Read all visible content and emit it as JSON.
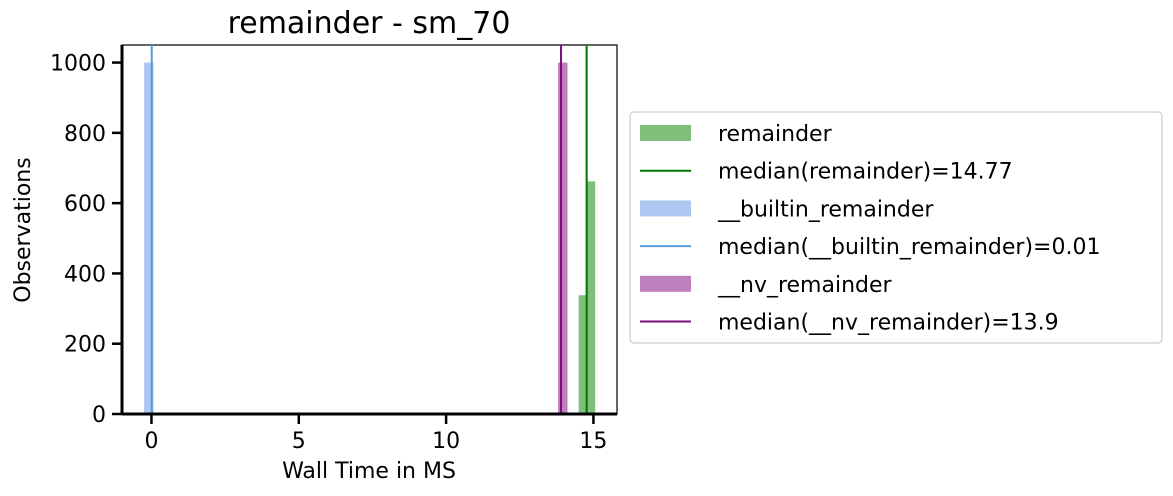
{
  "chart_data": {
    "type": "histogram",
    "title": "remainder - sm_70",
    "xlabel": "Wall Time in MS",
    "ylabel": "Observations",
    "xlim": [
      -1.0,
      15.8
    ],
    "ylim": [
      0,
      1050
    ],
    "xticks": [
      0,
      5,
      10,
      15
    ],
    "yticks": [
      0,
      200,
      400,
      600,
      800,
      1000
    ],
    "grid": false,
    "legend_position": "outside-right",
    "series": [
      {
        "name": "remainder",
        "kind": "bars",
        "color": "#7fbf7b",
        "bars": [
          {
            "x0": 14.5,
            "x1": 14.78,
            "count": 338
          },
          {
            "x0": 14.78,
            "x1": 15.06,
            "count": 662
          }
        ]
      },
      {
        "name": "__builtin_remainder",
        "kind": "bars",
        "color": "#aec7f1",
        "bars": [
          {
            "x0": -0.25,
            "x1": 0.07,
            "count": 1000
          }
        ]
      },
      {
        "name": "__nv_remainder",
        "kind": "bars",
        "color": "#bf7fbf",
        "bars": [
          {
            "x0": 13.8,
            "x1": 14.12,
            "count": 1000
          }
        ]
      }
    ],
    "medians": [
      {
        "name": "median(remainder)=14.77",
        "x": 14.77,
        "color": "#007500"
      },
      {
        "name": "median(__builtin_remainder)=0.01",
        "x": 0.01,
        "color": "#5b9bd5"
      },
      {
        "name": "median(__nv_remainder)=13.9",
        "x": 13.9,
        "color": "#7a0f7a"
      }
    ],
    "legend": [
      {
        "label": "remainder",
        "kind": "patch",
        "color": "#7fbf7b"
      },
      {
        "label": "median(remainder)=14.77",
        "kind": "line",
        "color": "#007500"
      },
      {
        "label": "__builtin_remainder",
        "kind": "patch",
        "color": "#aec7f1"
      },
      {
        "label": "median(__builtin_remainder)=0.01",
        "kind": "line",
        "color": "#5b9bd5"
      },
      {
        "label": "__nv_remainder",
        "kind": "patch",
        "color": "#bf7fbf"
      },
      {
        "label": "median(__nv_remainder)=13.9",
        "kind": "line",
        "color": "#7a0f7a"
      }
    ]
  }
}
